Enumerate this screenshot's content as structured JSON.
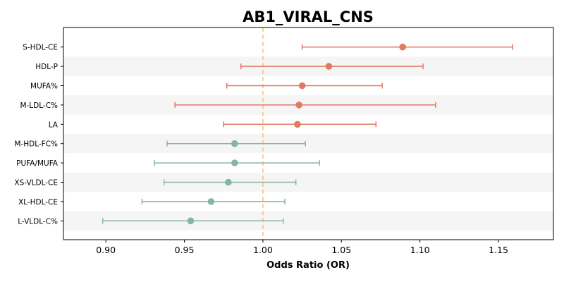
{
  "chart_data": {
    "type": "forest",
    "title": "AB1_VIRAL_CNS",
    "xlabel": "Odds Ratio (OR)",
    "ylabel": "",
    "xlim": [
      0.873,
      1.185
    ],
    "xticks": [
      "0.90",
      "0.95",
      "1.00",
      "1.05",
      "1.10",
      "1.15"
    ],
    "reference_line": 1.0,
    "reference_color": "#f0c987",
    "colors": {
      "positive": "#e07b62",
      "negative": "#86b5a0",
      "band": "#f5f5f5"
    },
    "grid": false,
    "rows": [
      {
        "label": "S-HDL-CE",
        "or": 1.089,
        "lower": 1.025,
        "upper": 1.159
      },
      {
        "label": "HDL-P",
        "or": 1.042,
        "lower": 0.986,
        "upper": 1.102
      },
      {
        "label": "MUFA%",
        "or": 1.025,
        "lower": 0.977,
        "upper": 1.076
      },
      {
        "label": "M-LDL-C%",
        "or": 1.023,
        "lower": 0.944,
        "upper": 1.11
      },
      {
        "label": "LA",
        "or": 1.022,
        "lower": 0.975,
        "upper": 1.072
      },
      {
        "label": "M-HDL-FC%",
        "or": 0.982,
        "lower": 0.939,
        "upper": 1.027
      },
      {
        "label": "PUFA/MUFA",
        "or": 0.982,
        "lower": 0.931,
        "upper": 1.036
      },
      {
        "label": "XS-VLDL-CE",
        "or": 0.978,
        "lower": 0.937,
        "upper": 1.021
      },
      {
        "label": "XL-HDL-CE",
        "or": 0.967,
        "lower": 0.923,
        "upper": 1.014
      },
      {
        "label": "L-VLDL-C%",
        "or": 0.954,
        "lower": 0.898,
        "upper": 1.013
      }
    ]
  }
}
